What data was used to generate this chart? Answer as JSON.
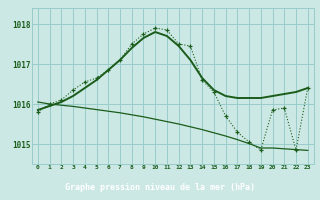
{
  "hours": [
    0,
    1,
    2,
    3,
    4,
    5,
    6,
    7,
    8,
    9,
    10,
    11,
    12,
    13,
    14,
    15,
    16,
    17,
    18,
    19,
    20,
    21,
    22,
    23
  ],
  "series_instant": [
    1015.8,
    1016.0,
    1016.1,
    1016.35,
    1016.55,
    1016.65,
    1016.85,
    1017.1,
    1017.5,
    1017.75,
    1017.9,
    1017.85,
    1017.5,
    1017.45,
    1016.6,
    1016.3,
    1015.7,
    1015.3,
    1015.05,
    1014.85,
    1015.85,
    1015.9,
    1014.85,
    1016.4
  ],
  "series_smooth": [
    1015.85,
    1015.95,
    1016.05,
    1016.2,
    1016.4,
    1016.6,
    1016.85,
    1017.1,
    1017.4,
    1017.65,
    1017.8,
    1017.7,
    1017.45,
    1017.1,
    1016.65,
    1016.35,
    1016.2,
    1016.15,
    1016.15,
    1016.15,
    1016.2,
    1016.25,
    1016.3,
    1016.4
  ],
  "series_trend": [
    1016.05,
    1016.0,
    1015.97,
    1015.94,
    1015.9,
    1015.86,
    1015.82,
    1015.78,
    1015.73,
    1015.68,
    1015.62,
    1015.56,
    1015.5,
    1015.43,
    1015.36,
    1015.28,
    1015.2,
    1015.11,
    1015.01,
    1014.9,
    1014.9,
    1014.88,
    1014.86,
    1014.84
  ],
  "bg_color": "#cce8e4",
  "grid_color": "#99cccc",
  "line_color": "#1a5c1a",
  "xlabel": "Graphe pression niveau de la mer (hPa)",
  "ylim": [
    1014.5,
    1018.4
  ],
  "yticks": [
    1015,
    1016,
    1017,
    1018
  ],
  "tick_color": "#1a5c1a",
  "bottom_bg": "#2d6b2d",
  "label_color": "#ffffff"
}
